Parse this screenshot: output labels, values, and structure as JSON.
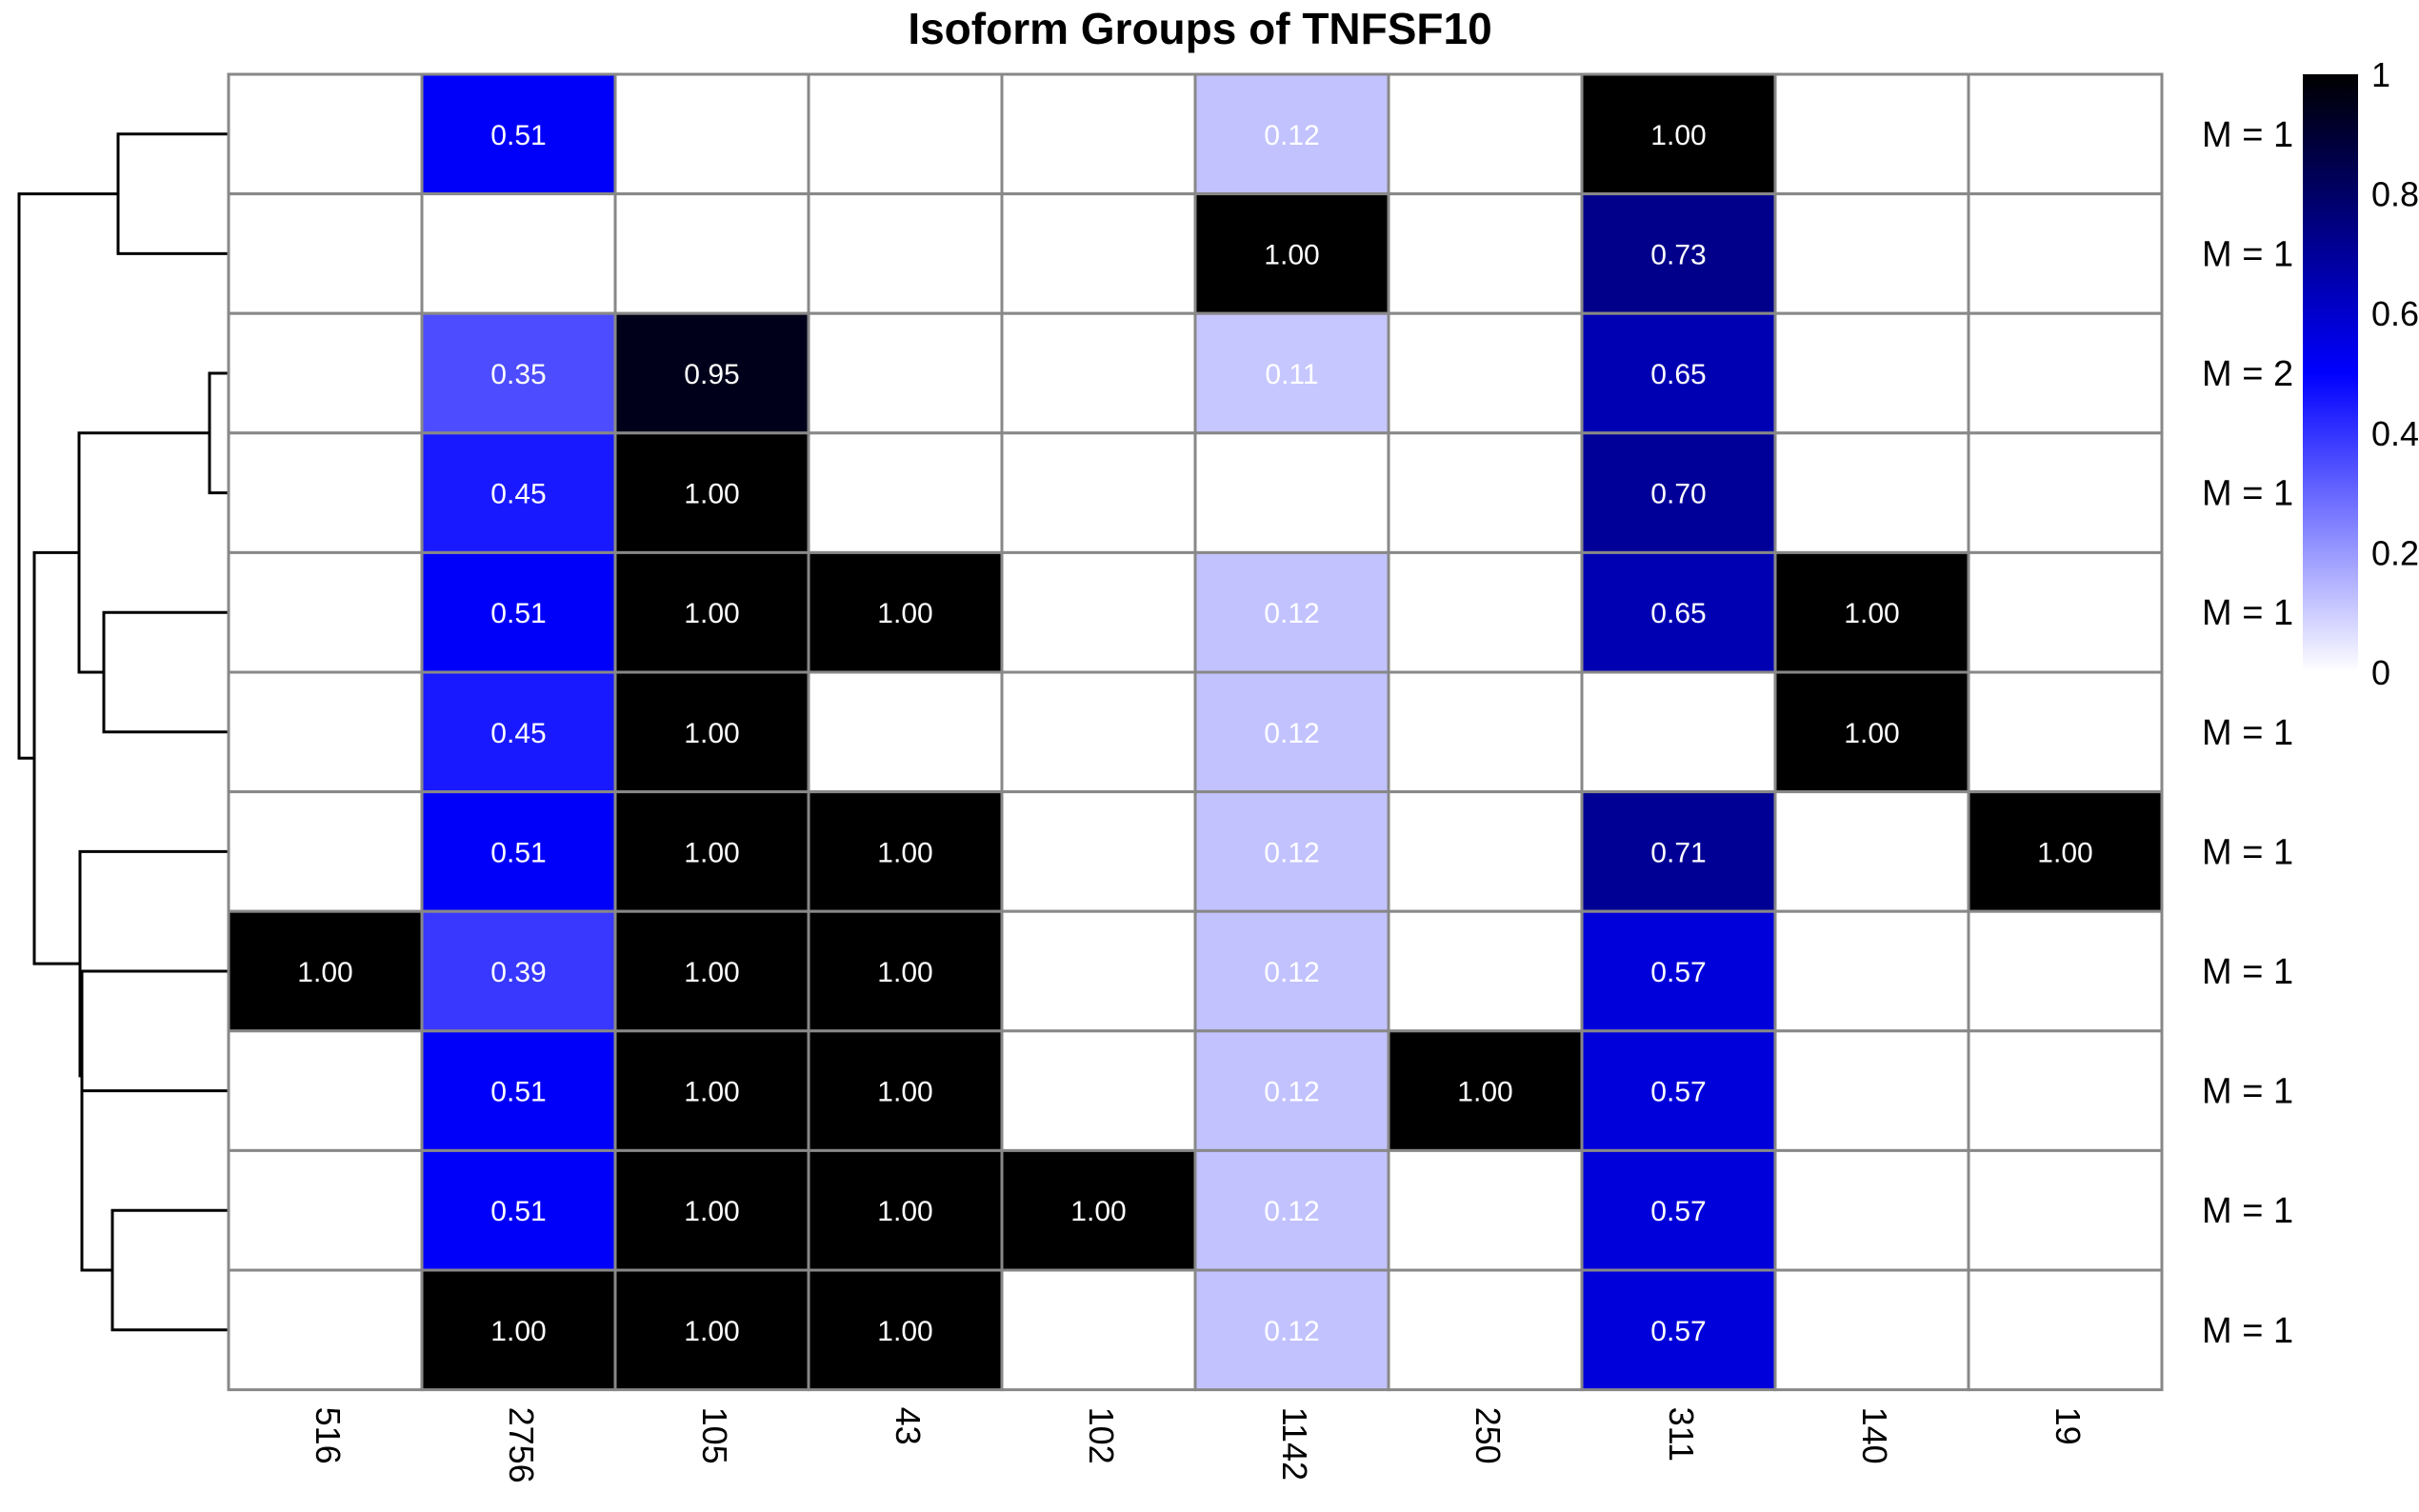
{
  "chart_data": {
    "type": "heatmap",
    "title": "Isoform Groups of TNFSF10",
    "columns": [
      "516",
      "2756",
      "105",
      "43",
      "102",
      "1142",
      "250",
      "311",
      "140",
      "19"
    ],
    "rows": [
      "M = 1",
      "M = 1",
      "M = 2",
      "M = 1",
      "M = 1",
      "M = 1",
      "M = 1",
      "M = 1",
      "M = 1",
      "M = 1",
      "M = 1"
    ],
    "values": [
      [
        null,
        0.51,
        null,
        null,
        null,
        0.12,
        null,
        1.0,
        null,
        null
      ],
      [
        null,
        null,
        null,
        null,
        null,
        1.0,
        null,
        0.73,
        null,
        null
      ],
      [
        null,
        0.35,
        0.95,
        null,
        null,
        0.11,
        null,
        0.65,
        null,
        null
      ],
      [
        null,
        0.45,
        1.0,
        null,
        null,
        null,
        null,
        0.7,
        null,
        null
      ],
      [
        null,
        0.51,
        1.0,
        1.0,
        null,
        0.12,
        null,
        0.65,
        1.0,
        null
      ],
      [
        null,
        0.45,
        1.0,
        null,
        null,
        0.12,
        null,
        null,
        1.0,
        null
      ],
      [
        null,
        0.51,
        1.0,
        1.0,
        null,
        0.12,
        null,
        0.71,
        null,
        1.0
      ],
      [
        1.0,
        0.39,
        1.0,
        1.0,
        null,
        0.12,
        null,
        0.57,
        null,
        null
      ],
      [
        null,
        0.51,
        1.0,
        1.0,
        null,
        0.12,
        1.0,
        0.57,
        null,
        null
      ],
      [
        null,
        0.51,
        1.0,
        1.0,
        1.0,
        0.12,
        null,
        0.57,
        null,
        null
      ],
      [
        null,
        1.0,
        1.0,
        1.0,
        null,
        0.12,
        null,
        0.57,
        null,
        null
      ]
    ],
    "value_labels": [
      [
        "",
        "0.51",
        "",
        "",
        "",
        "0.12",
        "",
        "1.00",
        "",
        ""
      ],
      [
        "",
        "",
        "",
        "",
        "",
        "1.00",
        "",
        "0.73",
        "",
        ""
      ],
      [
        "",
        "0.35",
        "0.95",
        "",
        "",
        "0.11",
        "",
        "0.65",
        "",
        ""
      ],
      [
        "",
        "0.45",
        "1.00",
        "",
        "",
        "",
        "",
        "0.70",
        "",
        ""
      ],
      [
        "",
        "0.51",
        "1.00",
        "1.00",
        "",
        "0.12",
        "",
        "0.65",
        "1.00",
        ""
      ],
      [
        "",
        "0.45",
        "1.00",
        "",
        "",
        "0.12",
        "",
        "",
        "1.00",
        ""
      ],
      [
        "",
        "0.51",
        "1.00",
        "1.00",
        "",
        "0.12",
        "",
        "0.71",
        "",
        "1.00"
      ],
      [
        "1.00",
        "0.39",
        "1.00",
        "1.00",
        "",
        "0.12",
        "",
        "0.57",
        "",
        ""
      ],
      [
        "",
        "0.51",
        "1.00",
        "1.00",
        "",
        "0.12",
        "1.00",
        "0.57",
        "",
        ""
      ],
      [
        "",
        "0.51",
        "1.00",
        "1.00",
        "1.00",
        "0.12",
        "",
        "0.57",
        "",
        ""
      ],
      [
        "",
        "1.00",
        "1.00",
        "1.00",
        "",
        "0.12",
        "",
        "0.57",
        "",
        ""
      ]
    ],
    "color_scale": {
      "min": 0,
      "max": 1,
      "colors": [
        "#ffffff",
        "#0000ff",
        "#000000"
      ]
    },
    "legend": {
      "placement": "right",
      "ticks": [
        "0",
        "0.2",
        "0.4",
        "0.6",
        "0.8",
        "1"
      ]
    },
    "grid": true,
    "dendrogram": "rows"
  }
}
